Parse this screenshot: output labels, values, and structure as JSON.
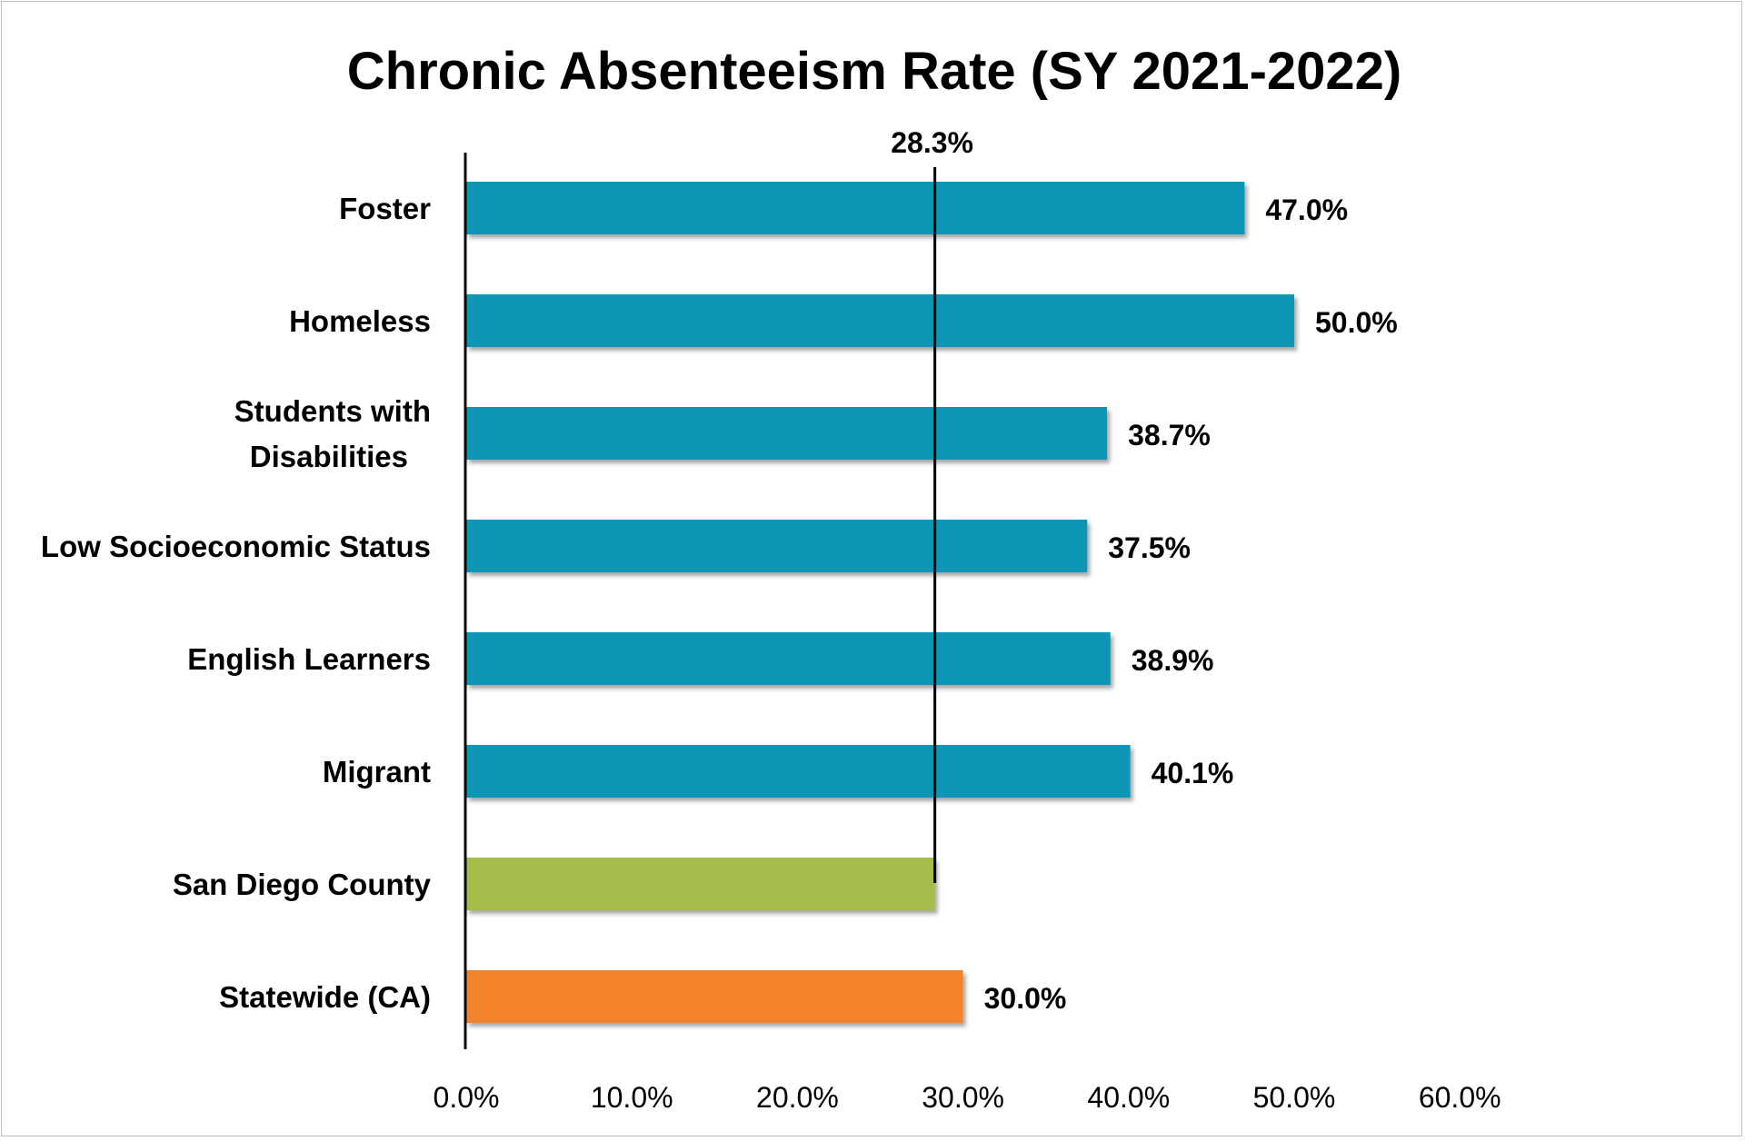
{
  "chart_data": {
    "type": "bar",
    "orientation": "horizontal",
    "title": "Chronic Absenteeism Rate (SY 2021-2022)",
    "categories": [
      "Foster",
      "Homeless",
      "Students with Disabilities",
      "Low Socioeconomic Status",
      "English Learners",
      "Migrant",
      "San Diego County",
      "Statewide (CA)"
    ],
    "category_lines": [
      [
        "Foster"
      ],
      [
        "Homeless"
      ],
      [
        "Students with",
        "Disabilities"
      ],
      [
        "Low Socioeconomic Status"
      ],
      [
        "English Learners"
      ],
      [
        "Migrant"
      ],
      [
        "San Diego County"
      ],
      [
        "Statewide (CA)"
      ]
    ],
    "values": [
      47.0,
      50.0,
      38.7,
      37.5,
      38.9,
      40.1,
      28.3,
      30.0
    ],
    "data_labels": [
      "47.0%",
      "50.0%",
      "38.7%",
      "37.5%",
      "38.9%",
      "40.1%",
      "",
      "30.0%"
    ],
    "bar_colors": [
      "#0896b6",
      "#0896b6",
      "#0896b6",
      "#0896b6",
      "#0896b6",
      "#0896b6",
      "#a4bc4a",
      "#f2832a"
    ],
    "reference_line": {
      "value": 28.3,
      "label": "28.3%"
    },
    "xlim": [
      0,
      60
    ],
    "x_ticks": [
      0,
      10,
      20,
      30,
      40,
      50,
      60
    ],
    "x_tick_labels": [
      "0.0%",
      "10.0%",
      "20.0%",
      "30.0%",
      "40.0%",
      "50.0%",
      "60.0%"
    ],
    "xlabel": "",
    "ylabel": "",
    "grid": false,
    "legend": "none"
  }
}
